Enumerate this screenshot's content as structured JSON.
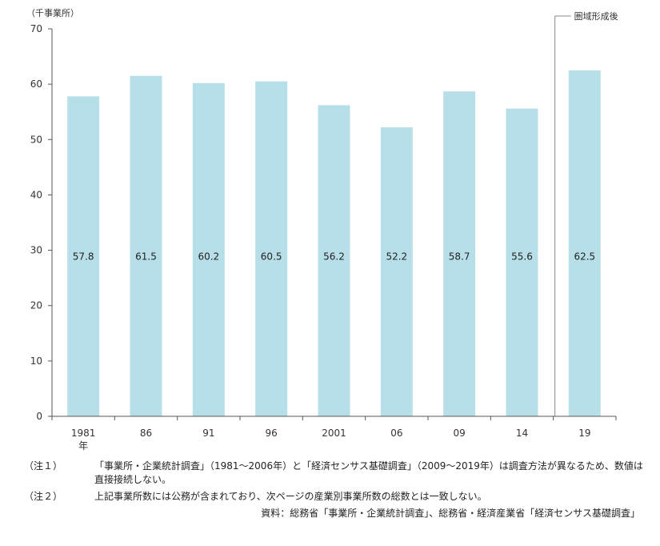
{
  "chart_data": {
    "type": "bar",
    "categories": [
      "1981",
      "86",
      "91",
      "96",
      "2001",
      "06",
      "09",
      "14",
      "19"
    ],
    "values": [
      57.8,
      61.5,
      60.2,
      60.5,
      56.2,
      52.2,
      58.7,
      55.6,
      62.5
    ],
    "value_labels": [
      "57.8",
      "61.5",
      "60.2",
      "60.5",
      "56.2",
      "52.2",
      "58.7",
      "55.6",
      "62.5"
    ],
    "first_category_suffix": "年",
    "y_unit": "（千事業所）",
    "yticks": [
      "0",
      "10",
      "20",
      "30",
      "40",
      "50",
      "60",
      "70"
    ],
    "ylim": [
      0,
      70
    ],
    "grid": false,
    "bar_color": "#b7dfe9",
    "divider_label": "圏域形成後"
  },
  "notes": [
    {
      "tag": "（注１）",
      "text": "「事業所・企業統計調査」（1981～2006年）と「経済センサス基礎調査」（2009～2019年）は調査方法が異なるため、数値は直接接続しない。"
    },
    {
      "tag": "（注２）",
      "text": "上記事業所数には公務が含まれており、次ページの産業別事業所数の総数とは一致しない。"
    }
  ],
  "source": "資料：総務省「事業所・企業統計調査」、総務省・経済産業省「経済センサス基礎調査」"
}
